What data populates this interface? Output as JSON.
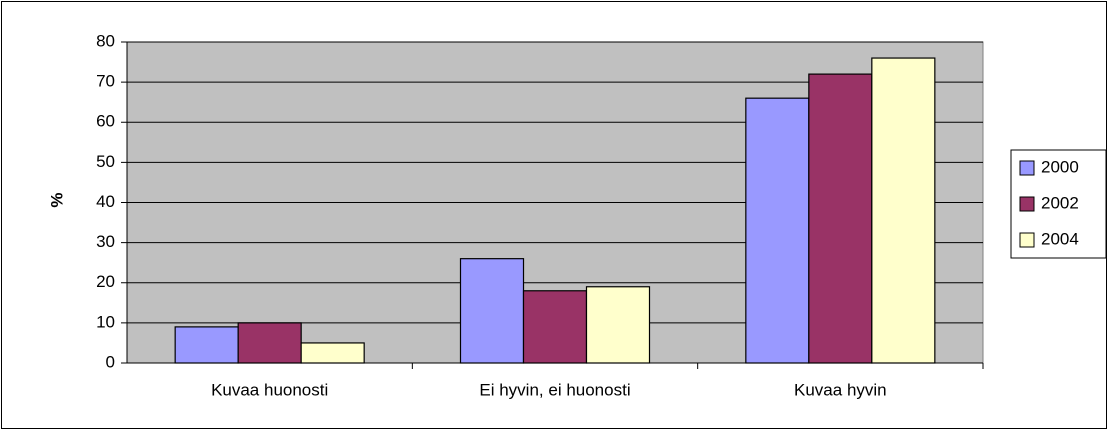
{
  "chart_data": {
    "type": "bar",
    "y_label": "%",
    "categories": [
      "Kuvaa huonosti",
      "Ei hyvin, ei huonosti",
      "Kuvaa hyvin"
    ],
    "series": [
      {
        "name": "2000",
        "color": "#9999ff",
        "values": [
          9,
          26,
          66
        ]
      },
      {
        "name": "2002",
        "color": "#993366",
        "values": [
          10,
          18,
          72
        ]
      },
      {
        "name": "2004",
        "color": "#ffffcc",
        "values": [
          5,
          19,
          76
        ]
      }
    ],
    "ylim": [
      0,
      80
    ],
    "yticks": [
      0,
      10,
      20,
      30,
      40,
      50,
      60,
      70,
      80
    ],
    "grid": true,
    "legend": "right",
    "plot_background": "#c0c0c0"
  }
}
